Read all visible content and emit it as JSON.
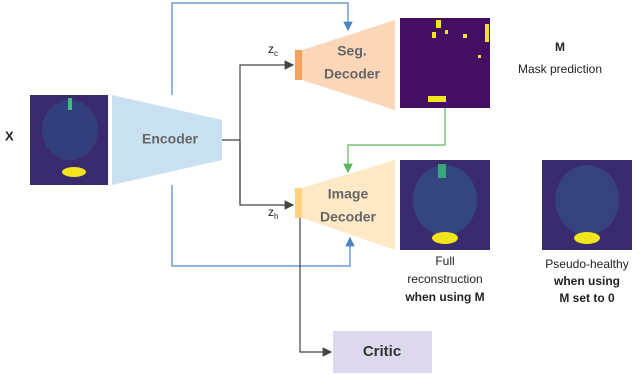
{
  "input": {
    "label": "X"
  },
  "encoder": {
    "label": "Encoder"
  },
  "latents": [
    {
      "symbol": "z",
      "subscript": "c"
    },
    {
      "symbol": "z",
      "subscript": "h"
    }
  ],
  "seg_decoder": {
    "lines": [
      "Seg.",
      "Decoder"
    ]
  },
  "image_decoder": {
    "lines": [
      "Image",
      "Decoder"
    ]
  },
  "mask_output": {
    "symbol": "M",
    "caption": "Mask prediction"
  },
  "full_output": {
    "lines": [
      "Full",
      "reconstruction"
    ],
    "condition": "when using M"
  },
  "healthy_output": {
    "lines": [
      "Pseudo-healthy"
    ],
    "condition": [
      "when using",
      "M set to 0"
    ]
  },
  "critic": {
    "label": "Critic"
  }
}
